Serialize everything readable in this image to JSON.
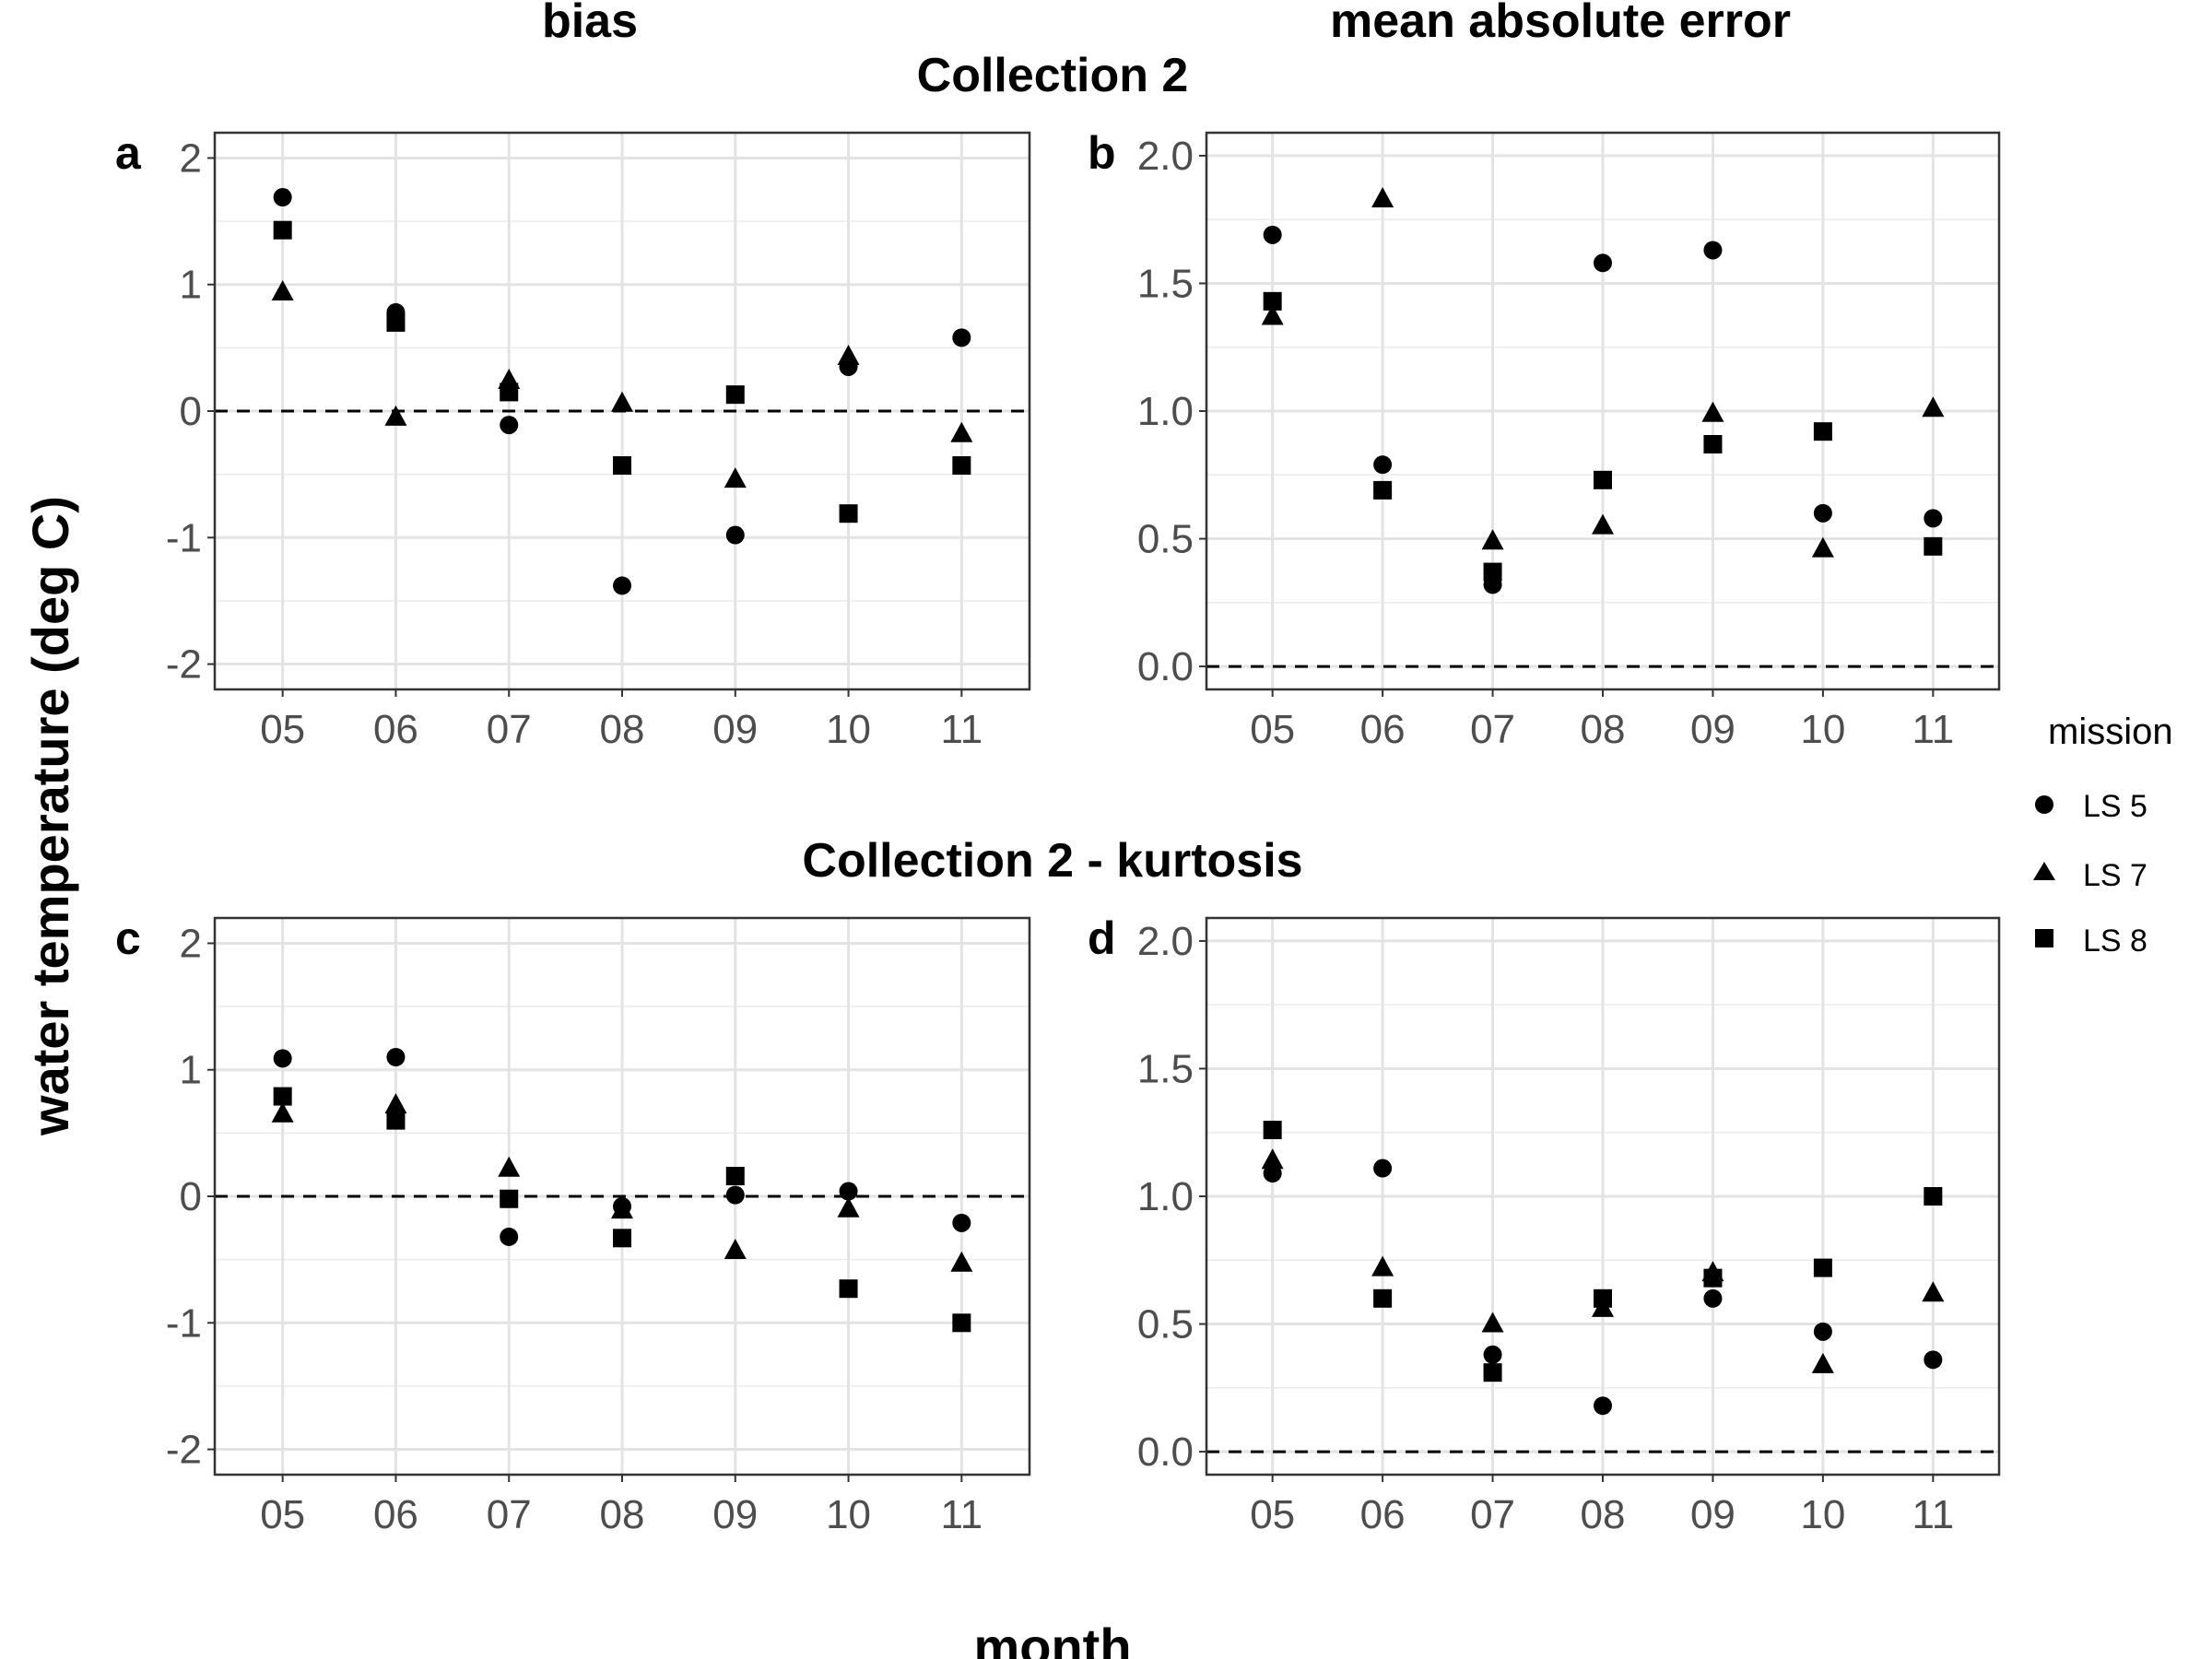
{
  "figure": {
    "column_titles": [
      "bias",
      "mean absolute error"
    ],
    "row_titles": [
      "Collection 2",
      "Collection 2 - kurtosis"
    ],
    "y_axis_title": "water temperature (deg C)",
    "x_axis_title": "month",
    "legend": {
      "title": "mission",
      "items": [
        {
          "label": "LS 5",
          "shape": "circle-icon"
        },
        {
          "label": "LS 7",
          "shape": "triangle-icon"
        },
        {
          "label": "LS 8",
          "shape": "square-icon"
        }
      ]
    }
  },
  "chart_data": [
    {
      "type": "scatter",
      "panel": "a",
      "title": "bias",
      "row": "Collection 2",
      "categories": [
        "05",
        "06",
        "07",
        "08",
        "09",
        "10",
        "11"
      ],
      "ylim": [
        -2.2,
        2.2
      ],
      "yticks": [
        -2,
        -1,
        0,
        1,
        2
      ],
      "ytick_labels": [
        "-2",
        "-1",
        "0",
        "1",
        "2"
      ],
      "reference_line": 0,
      "grid": true,
      "series": [
        {
          "name": "LS 5",
          "values": [
            1.69,
            0.78,
            -0.11,
            -1.38,
            -0.98,
            0.35,
            0.58
          ]
        },
        {
          "name": "LS 7",
          "values": [
            0.94,
            -0.05,
            0.24,
            0.06,
            -0.54,
            0.43,
            -0.18
          ]
        },
        {
          "name": "LS 8",
          "values": [
            1.43,
            0.7,
            0.15,
            -0.43,
            0.13,
            -0.81,
            -0.43
          ]
        }
      ]
    },
    {
      "type": "scatter",
      "panel": "b",
      "title": "mean absolute error",
      "row": "Collection 2",
      "categories": [
        "05",
        "06",
        "07",
        "08",
        "09",
        "10",
        "11"
      ],
      "ylim": [
        -0.09,
        2.09
      ],
      "yticks": [
        0,
        0.5,
        1,
        1.5,
        2
      ],
      "ytick_labels": [
        "0.0",
        "0.5",
        "1.0",
        "1.5",
        "2.0"
      ],
      "reference_line": 0,
      "grid": true,
      "series": [
        {
          "name": "LS 5",
          "values": [
            1.69,
            0.79,
            0.32,
            1.58,
            1.63,
            0.6,
            0.58
          ]
        },
        {
          "name": "LS 7",
          "values": [
            1.37,
            1.83,
            0.49,
            0.55,
            0.99,
            0.46,
            1.01
          ]
        },
        {
          "name": "LS 8",
          "values": [
            1.43,
            0.69,
            0.37,
            0.73,
            0.87,
            0.92,
            0.47
          ]
        }
      ]
    },
    {
      "type": "scatter",
      "panel": "c",
      "title": "bias",
      "row": "Collection 2 - kurtosis",
      "categories": [
        "05",
        "06",
        "07",
        "08",
        "09",
        "10",
        "11"
      ],
      "ylim": [
        -2.2,
        2.2
      ],
      "yticks": [
        -2,
        -1,
        0,
        1,
        2
      ],
      "ytick_labels": [
        "-2",
        "-1",
        "0",
        "1",
        "2"
      ],
      "reference_line": 0,
      "grid": true,
      "series": [
        {
          "name": "LS 5",
          "values": [
            1.09,
            1.1,
            -0.32,
            -0.08,
            0.01,
            0.04,
            -0.21
          ]
        },
        {
          "name": "LS 7",
          "values": [
            0.65,
            0.72,
            0.22,
            -0.11,
            -0.43,
            -0.1,
            -0.53
          ]
        },
        {
          "name": "LS 8",
          "values": [
            0.79,
            0.6,
            -0.02,
            -0.33,
            0.16,
            -0.73,
            -1.0
          ]
        }
      ]
    },
    {
      "type": "scatter",
      "panel": "d",
      "title": "mean absolute error",
      "row": "Collection 2 - kurtosis",
      "categories": [
        "05",
        "06",
        "07",
        "08",
        "09",
        "10",
        "11"
      ],
      "ylim": [
        -0.09,
        2.09
      ],
      "yticks": [
        0,
        0.5,
        1,
        1.5,
        2
      ],
      "ytick_labels": [
        "0.0",
        "0.5",
        "1.0",
        "1.5",
        "2.0"
      ],
      "reference_line": 0,
      "grid": true,
      "series": [
        {
          "name": "LS 5",
          "values": [
            1.09,
            1.11,
            0.38,
            0.18,
            0.6,
            0.47,
            0.36
          ]
        },
        {
          "name": "LS 7",
          "values": [
            1.14,
            0.72,
            0.5,
            0.56,
            0.7,
            0.34,
            0.62
          ]
        },
        {
          "name": "LS 8",
          "values": [
            1.26,
            0.6,
            0.31,
            0.6,
            0.68,
            0.72,
            1.0
          ]
        }
      ]
    }
  ]
}
